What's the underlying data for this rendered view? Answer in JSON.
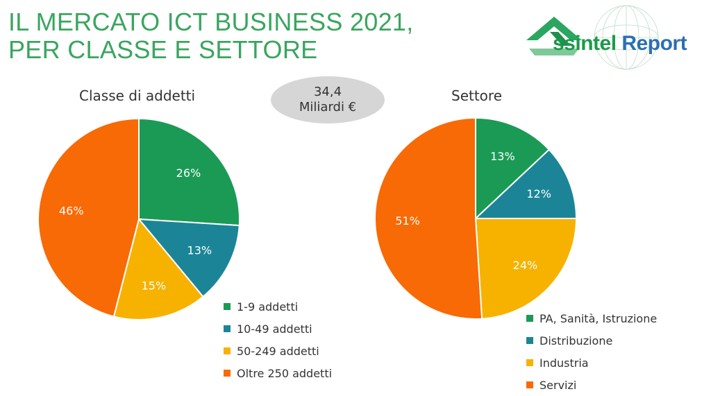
{
  "header": {
    "title_line1": "IL MERCATO ICT BUSINESS 2021,",
    "title_line2": "PER CLASSE E SETTORE"
  },
  "logo": {
    "part1": "ssintel",
    "part2": "Report",
    "icon": "triangle-arrow-logo-icon"
  },
  "badge": {
    "value": "34,4",
    "unit": "Miliardi €"
  },
  "colors": {
    "green": "#1b9a55",
    "teal": "#1b8597",
    "yellow": "#f7b200",
    "orange": "#f86a05",
    "title": "#3aa55f"
  },
  "chart_data": [
    {
      "type": "pie",
      "title": "Classe di addetti",
      "categories": [
        "1-9 addetti",
        "10-49 addetti",
        "50-249 addetti",
        "Oltre 250 addetti"
      ],
      "values": [
        26,
        13,
        15,
        46
      ],
      "labels": [
        "26%",
        "13%",
        "15%",
        "46%"
      ],
      "colors": [
        "#1b9a55",
        "#1b8597",
        "#f7b200",
        "#f86a05"
      ],
      "legend": "bottom-right"
    },
    {
      "type": "pie",
      "title": "Settore",
      "categories": [
        "PA, Sanità, Istruzione",
        "Distribuzione",
        "Industria",
        "Servizi"
      ],
      "values": [
        13,
        12,
        24,
        51
      ],
      "labels": [
        "13%",
        "12%",
        "24%",
        "51%"
      ],
      "colors": [
        "#1b9a55",
        "#1b8597",
        "#f7b200",
        "#f86a05"
      ],
      "legend": "bottom-right"
    }
  ]
}
